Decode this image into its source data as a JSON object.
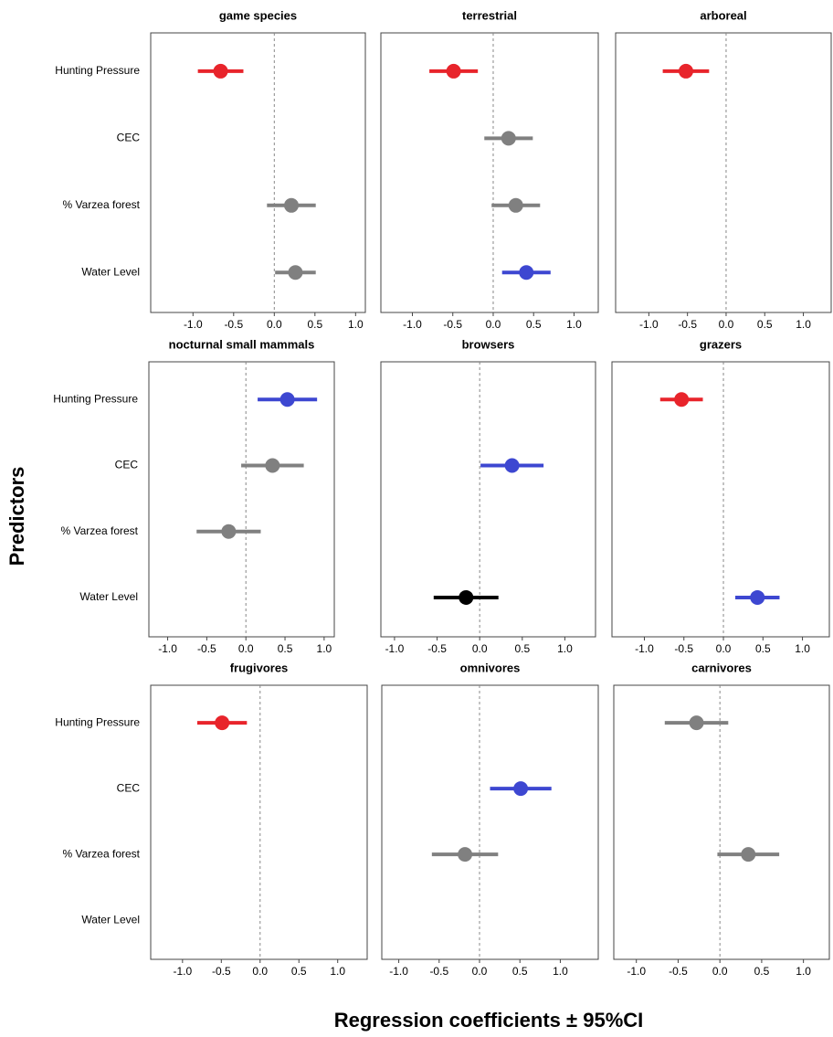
{
  "axis_titles": {
    "x": "Regression coefficients ± 95%CI",
    "y": "Predictors"
  },
  "chart_data": [
    {
      "type": "dot",
      "title": "game species",
      "categories": [
        "Hunting Pressure",
        "CEC",
        "% Varzea forest",
        "Water Level"
      ],
      "values": [
        -0.66,
        null,
        0.21,
        0.26
      ],
      "errors": [
        0.28,
        null,
        0.3,
        0.25
      ],
      "colors": [
        "#e8242b",
        null,
        "#808080",
        "#808080"
      ],
      "xlim": [
        -1.52,
        1.12
      ],
      "xticks": [
        {
          "value": -1,
          "label": "-1.0"
        },
        -0.5,
        {
          "value": 0,
          "label": "0.0"
        },
        0.5,
        {
          "value": 1,
          "label": "1.0"
        }
      ]
    },
    {
      "type": "dot",
      "title": "terrestrial",
      "values": [
        -0.49,
        0.19,
        0.28,
        0.41
      ],
      "errors": [
        0.3,
        0.3,
        0.3,
        0.3
      ],
      "colors": [
        "#e8242b",
        "#808080",
        "#808080",
        "#3d47d1"
      ],
      "xlim": [
        -1.39,
        1.3
      ],
      "xticks": [
        {
          "value": -1,
          "label": "-1.0"
        },
        -0.5,
        {
          "value": 0,
          "label": "0.0"
        },
        0.5,
        {
          "value": 1,
          "label": "1.0"
        }
      ]
    },
    {
      "type": "dot",
      "title": "arboreal",
      "values": [
        -0.52,
        null,
        null,
        null
      ],
      "errors": [
        0.3,
        null,
        null,
        null
      ],
      "colors": [
        "#e8242b",
        null,
        null,
        null
      ],
      "xlim": [
        -1.43,
        1.36
      ],
      "xticks": [
        {
          "value": -1,
          "label": "-1.0"
        },
        -0.5,
        {
          "value": 0,
          "label": "0.0"
        },
        0.5,
        {
          "value": 1,
          "label": "1.0"
        }
      ]
    },
    {
      "type": "dot",
      "title": "nocturnal small mammals",
      "categories": [
        "Hunting Pressure",
        "CEC",
        "% Varzea forest",
        "Water Level"
      ],
      "values": [
        0.53,
        0.34,
        -0.22,
        null
      ],
      "errors": [
        0.38,
        0.4,
        0.41,
        null
      ],
      "colors": [
        "#3d47d1",
        "#808080",
        "#808080",
        null
      ],
      "xlim": [
        -1.24,
        1.13
      ],
      "xticks": [
        {
          "value": -1,
          "label": "-1.0"
        },
        -0.5,
        {
          "value": 0,
          "label": "0.0"
        },
        0.5,
        {
          "value": 1,
          "label": "1.0"
        }
      ]
    },
    {
      "type": "dot",
      "title": "browsers",
      "values": [
        null,
        0.38,
        null,
        -0.16
      ],
      "errors": [
        null,
        0.37,
        null,
        0.38
      ],
      "colors": [
        null,
        "#3d47d1",
        null,
        "#000000"
      ],
      "xlim": [
        -1.16,
        1.36
      ],
      "xticks": [
        {
          "value": -1,
          "label": "-1.0"
        },
        -0.5,
        {
          "value": 0,
          "label": "0.0"
        },
        0.5,
        {
          "value": 1,
          "label": "1.0"
        }
      ]
    },
    {
      "type": "dot",
      "title": "grazers",
      "values": [
        -0.53,
        null,
        null,
        0.43
      ],
      "errors": [
        0.27,
        null,
        null,
        0.28
      ],
      "colors": [
        "#e8242b",
        null,
        null,
        "#3d47d1"
      ],
      "xlim": [
        -1.41,
        1.34
      ],
      "xticks": [
        {
          "value": -1,
          "label": "-1.0"
        },
        -0.5,
        {
          "value": 0,
          "label": "0.0"
        },
        0.5,
        {
          "value": 1,
          "label": "1.0"
        }
      ]
    },
    {
      "type": "dot",
      "title": "frugivores",
      "categories": [
        "Hunting Pressure",
        "CEC",
        "% Varzea forest",
        "Water Level"
      ],
      "values": [
        -0.49,
        null,
        null,
        null
      ],
      "errors": [
        0.32,
        null,
        null,
        null
      ],
      "colors": [
        "#e8242b",
        null,
        null,
        null
      ],
      "xlim": [
        -1.41,
        1.38
      ],
      "xticks": [
        {
          "value": -1,
          "label": "-1.0"
        },
        -0.5,
        {
          "value": 0,
          "label": "0.0"
        },
        0.5,
        {
          "value": 1,
          "label": "1.0"
        }
      ]
    },
    {
      "type": "dot",
      "title": "omnivores",
      "values": [
        null,
        0.51,
        -0.18,
        null
      ],
      "errors": [
        null,
        0.38,
        0.41,
        null
      ],
      "colors": [
        null,
        "#3d47d1",
        "#808080",
        null
      ],
      "xlim": [
        -1.21,
        1.47
      ],
      "xticks": [
        {
          "value": -1,
          "label": "-1.0"
        },
        -0.5,
        {
          "value": 0,
          "label": "0.0"
        },
        0.5,
        {
          "value": 1,
          "label": "1.0"
        }
      ]
    },
    {
      "type": "dot",
      "title": "carnivores",
      "values": [
        -0.28,
        null,
        0.34,
        null
      ],
      "errors": [
        0.38,
        null,
        0.37,
        null
      ],
      "colors": [
        "#808080",
        null,
        "#808080",
        null
      ],
      "xlim": [
        -1.27,
        1.31
      ],
      "xticks": [
        {
          "value": -1,
          "label": "-1.0"
        },
        -0.5,
        {
          "value": 0,
          "label": "0.0"
        },
        0.5,
        {
          "value": 1,
          "label": "1.0"
        }
      ]
    }
  ]
}
